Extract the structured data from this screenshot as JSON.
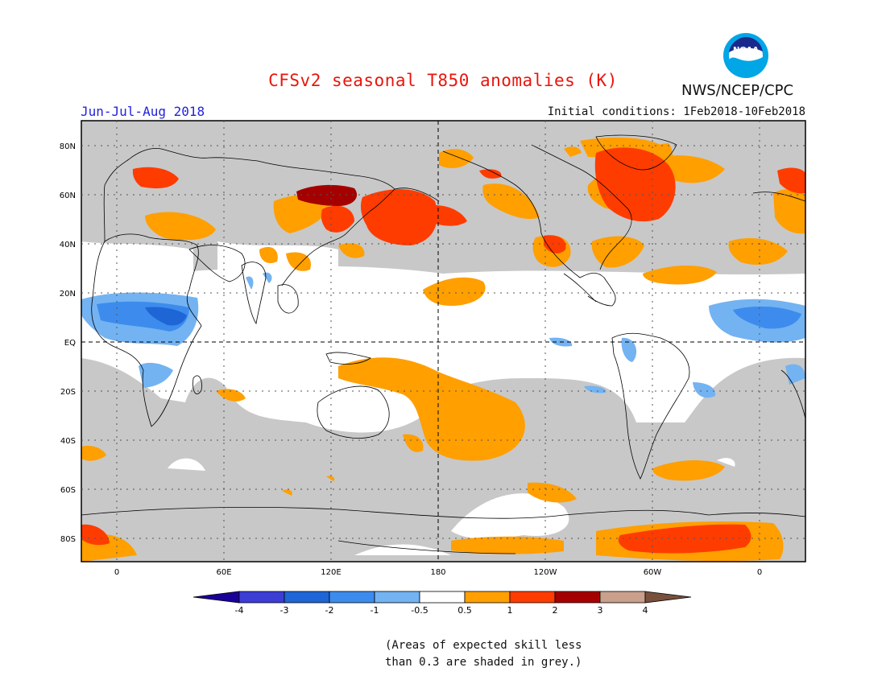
{
  "title": "CFSv2 seasonal T850 anomalies (K)",
  "season": "Jun-Jul-Aug 2018",
  "initial_conditions": "Initial conditions: 1Feb2018-10Feb2018",
  "agency": "NWS/NCEP/CPC",
  "logo_text": "NOAA",
  "lat_labels": [
    "80N",
    "60N",
    "40N",
    "20N",
    "EQ",
    "20S",
    "40S",
    "60S",
    "80S"
  ],
  "lon_labels": [
    "0",
    "60E",
    "120E",
    "180",
    "120W",
    "60W",
    "0"
  ],
  "colorbar": {
    "colors": [
      "#1a0099",
      "#3d3dd6",
      "#1e66d6",
      "#3d8ced",
      "#73b3f2",
      "#ffffff",
      "#ff9f00",
      "#ff3c00",
      "#a50000",
      "#c8a08c",
      "#78503c"
    ],
    "labels": [
      "-4",
      "-3",
      "-2",
      "-1",
      "-0.5",
      "0.5",
      "1",
      "2",
      "3",
      "4"
    ]
  },
  "skill_note": {
    "line1": "(Areas of expected skill less",
    "line2": "than 0.3 are shaded in grey.)"
  },
  "colors": {
    "grey_skill": "#c8c8c8",
    "title": "#e8150c",
    "season": "#2222dd"
  }
}
